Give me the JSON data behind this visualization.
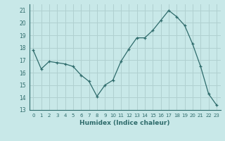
{
  "x": [
    0,
    1,
    2,
    3,
    4,
    5,
    6,
    7,
    8,
    9,
    10,
    11,
    12,
    13,
    14,
    15,
    16,
    17,
    18,
    19,
    20,
    21,
    22,
    23
  ],
  "y": [
    17.8,
    16.3,
    16.9,
    16.8,
    16.7,
    16.5,
    15.8,
    15.3,
    14.1,
    15.0,
    15.4,
    16.9,
    17.9,
    18.8,
    18.8,
    19.4,
    20.2,
    21.0,
    20.5,
    19.8,
    18.3,
    16.5,
    14.3,
    13.4
  ],
  "line_color": "#2e6b6b",
  "marker": "+",
  "xlabel": "Humidex (Indice chaleur)",
  "ylim": [
    13,
    21.5
  ],
  "yticks": [
    13,
    14,
    15,
    16,
    17,
    18,
    19,
    20,
    21
  ],
  "xticks": [
    0,
    1,
    2,
    3,
    4,
    5,
    6,
    7,
    8,
    9,
    10,
    11,
    12,
    13,
    14,
    15,
    16,
    17,
    18,
    19,
    20,
    21,
    22,
    23
  ],
  "xtick_labels": [
    "0",
    "1",
    "2",
    "3",
    "4",
    "5",
    "6",
    "7",
    "8",
    "9",
    "10",
    "11",
    "12",
    "13",
    "14",
    "15",
    "16",
    "17",
    "18",
    "19",
    "20",
    "21",
    "22",
    "23"
  ],
  "background_color": "#c8e8e8",
  "grid_color": "#b0d0d0",
  "font_color": "#2e6b6b"
}
